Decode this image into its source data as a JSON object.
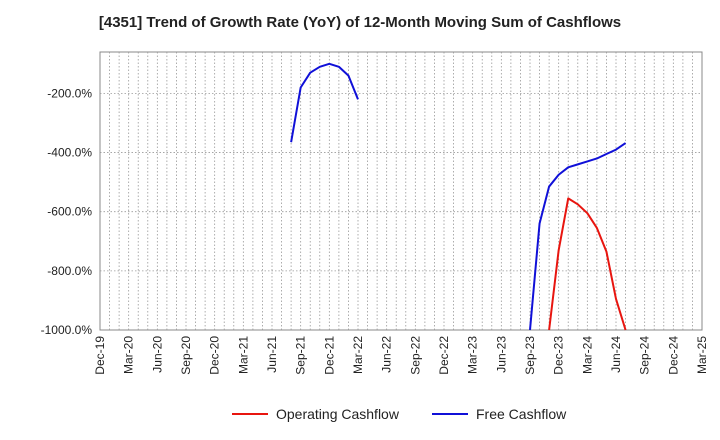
{
  "chart_data": {
    "type": "line",
    "title": "[4351]  Trend of Growth Rate (YoY) of 12-Month Moving Sum of Cashflows",
    "xlabel": "",
    "ylabel": "",
    "x_tick_labels": [
      "Dec-19",
      "Mar-20",
      "Jun-20",
      "Sep-20",
      "Dec-20",
      "Mar-21",
      "Jun-21",
      "Sep-21",
      "Dec-21",
      "Mar-22",
      "Jun-22",
      "Sep-22",
      "Dec-22",
      "Mar-23",
      "Jun-23",
      "Sep-23",
      "Dec-23",
      "Mar-24",
      "Jun-24",
      "Sep-24",
      "Dec-24",
      "Mar-25"
    ],
    "y_tick_labels": [
      "-200.0%",
      "-400.0%",
      "-600.0%",
      "-800.0%",
      "-1000.0%"
    ],
    "ylim": [
      -1000,
      -60
    ],
    "grid": true,
    "legend_position": "bottom",
    "series": [
      {
        "name": "Operating Cashflow",
        "color": "#e8150f",
        "points": [
          [
            "Nov-23",
            -1000
          ],
          [
            "Dec-23",
            -730
          ],
          [
            "Jan-24",
            -555
          ],
          [
            "Feb-24",
            -575
          ],
          [
            "Mar-24",
            -605
          ],
          [
            "Apr-24",
            -655
          ],
          [
            "May-24",
            -735
          ],
          [
            "Jun-24",
            -895
          ],
          [
            "Jul-24",
            -1000
          ]
        ]
      },
      {
        "name": "Free Cashflow",
        "color": "#1010d8",
        "points": [
          [
            "Aug-21",
            -365
          ],
          [
            "Sep-21",
            -180
          ],
          [
            "Oct-21",
            -130
          ],
          [
            "Nov-21",
            -110
          ],
          [
            "Dec-21",
            -100
          ],
          [
            "Jan-22",
            -110
          ],
          [
            "Feb-22",
            -140
          ],
          [
            "Mar-22",
            -220
          ],
          null,
          [
            "Sep-23",
            -1000
          ],
          [
            "Oct-23",
            -640
          ],
          [
            "Nov-23",
            -515
          ],
          [
            "Dec-23",
            -475
          ],
          [
            "Jan-24",
            -450
          ],
          [
            "Feb-24",
            -440
          ],
          [
            "Mar-24",
            -430
          ],
          [
            "Apr-24",
            -420
          ],
          [
            "May-24",
            -405
          ],
          [
            "Jun-24",
            -390
          ],
          [
            "Jul-24",
            -368
          ]
        ]
      }
    ]
  }
}
